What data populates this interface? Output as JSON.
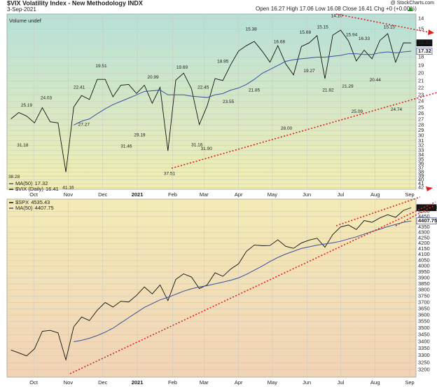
{
  "chart_data": [
    {
      "type": "line",
      "y_scale": "log",
      "inverted": true,
      "grid": true,
      "title": "$VIX Volatility Index - New Methodology INDX",
      "date": "3-Sep-2021",
      "quote": "Open 16.27 High 17.06 Low 16.08 Close 16.41 Chg +0 (+0.00%)",
      "source": "@ StockCharts.com",
      "annotation": "Volume undef",
      "x": [
        0,
        1,
        2,
        3,
        4,
        5,
        6,
        7,
        8,
        9,
        10,
        11,
        12,
        13,
        14,
        15,
        16,
        17,
        18,
        19,
        20,
        21,
        22,
        23,
        24,
        25,
        26,
        27,
        28,
        29,
        30,
        31,
        32,
        33,
        34,
        35,
        36,
        37,
        38,
        39,
        40,
        41,
        42,
        43,
        44,
        45,
        46,
        47,
        48,
        49,
        50,
        51
      ],
      "xlim": [
        -0.5,
        51.6
      ],
      "xticks": [
        {
          "value": 2.9,
          "label": "Oct"
        },
        {
          "value": 7.3,
          "label": "Nov"
        },
        {
          "value": 11.7,
          "label": "Dec"
        },
        {
          "value": 16.1,
          "label": "2021"
        },
        {
          "value": 20.6,
          "label": "Feb"
        },
        {
          "value": 24.6,
          "label": "Mar"
        },
        {
          "value": 29.0,
          "label": "Apr"
        },
        {
          "value": 33.3,
          "label": "May"
        },
        {
          "value": 37.7,
          "label": "Jun"
        },
        {
          "value": 42.0,
          "label": "Jul"
        },
        {
          "value": 46.4,
          "label": "Aug"
        },
        {
          "value": 50.8,
          "label": "Sep"
        }
      ],
      "ylim": [
        13.6,
        42.5
      ],
      "yticks": [
        14,
        15,
        18,
        19,
        20,
        21,
        22,
        23,
        24,
        25,
        26,
        27,
        28,
        29,
        30,
        31,
        32,
        33,
        34,
        35,
        36,
        37,
        38,
        39,
        40,
        41,
        42
      ],
      "series": [
        {
          "name": "$VIX (Daily)",
          "color": "#111111",
          "values": [
            26.9,
            25.8,
            26.4,
            27.6,
            25.0,
            27.4,
            27.6,
            38.0,
            24.9,
            23.1,
            23.7,
            20.8,
            20.8,
            23.3,
            21.6,
            21.5,
            22.8,
            21.6,
            24.3,
            21.9,
            33.1,
            20.9,
            19.97,
            22.1,
            27.9,
            24.7,
            20.7,
            20.95,
            18.9,
            17.3,
            16.7,
            16.25,
            17.3,
            18.6,
            16.7,
            18.8,
            20.2,
            16.8,
            16.4,
            15.65,
            20.7,
            15.6,
            15.1,
            16.2,
            18.45,
            17.2,
            18.2,
            16.15,
            15.45,
            18.6,
            16.4,
            16.41
          ]
        },
        {
          "name": "MA(50)",
          "color": "#3a4fa0",
          "values": [
            null,
            null,
            null,
            null,
            null,
            null,
            null,
            null,
            28.0,
            27.3,
            26.9,
            26.0,
            25.2,
            24.5,
            24.0,
            23.5,
            23.0,
            22.5,
            22.4,
            22.3,
            23.0,
            23.0,
            23.0,
            23.2,
            23.3,
            23.4,
            23.0,
            22.8,
            22.3,
            22.0,
            21.5,
            20.8,
            20.0,
            19.5,
            19.0,
            18.5,
            18.3,
            18.2,
            18.1,
            18.0,
            18.0,
            17.9,
            17.8,
            17.6,
            17.6,
            17.7,
            17.7,
            17.5,
            17.4,
            17.5,
            17.4,
            17.32
          ]
        }
      ],
      "point_labels": {
        "x": [
          0.4,
          2.0,
          1.5,
          4.5,
          9.3,
          7.3,
          8.7,
          11.5,
          14.7,
          16.4,
          18.1,
          20.2,
          21.8,
          24.5,
          23.7,
          24.9,
          27.0,
          27.7,
          30.6,
          31.0,
          34.2,
          35.1,
          37.5,
          39.7,
          38.0,
          41.5,
          40.4,
          43.4,
          42.9,
          45.0,
          44.1,
          46.4,
          48.2,
          49.1
        ],
        "values": [
          38.28,
          25.19,
          31.18,
          24.03,
          27.27,
          41.16,
          22.41,
          19.51,
          31.46,
          29.19,
          20.99,
          37.51,
          19.69,
          22.45,
          31.16,
          31.9,
          18.95,
          23.55,
          15.38,
          21.85,
          16.68,
          28.0,
          15.68,
          15.15,
          19.27,
          14.1,
          21.82,
          15.94,
          21.29,
          16.33,
          25.09,
          20.44,
          15.15,
          24.74
        ],
        "value_labels": [
          "38.28",
          "25.19",
          "31.18",
          "24.03",
          "27.27",
          "41.16",
          "22.41",
          "19.51",
          "31.46",
          "29.19",
          "20.99",
          "37.51",
          "19.69",
          "22.45",
          "31.16",
          "31.90",
          "18.95",
          "23.55",
          "15.38",
          "21.85",
          "16.68",
          "28.00",
          "15.68",
          "15.15",
          "19.27",
          "14.10",
          "21.82",
          "15.94",
          "21.29",
          "16.33",
          "25.09",
          "20.44",
          "15.15",
          "24.74"
        ],
        "below": [
          true,
          false,
          true,
          false,
          true,
          true,
          false,
          false,
          true,
          true,
          false,
          true,
          false,
          false,
          true,
          true,
          false,
          true,
          false,
          true,
          false,
          true,
          false,
          false,
          true,
          false,
          true,
          false,
          true,
          false,
          true,
          true,
          false,
          true
        ]
      }
    },
    {
      "type": "line",
      "y_scale": "log",
      "inverted": false,
      "grid": true,
      "x": [
        0,
        1,
        2,
        3,
        4,
        5,
        6,
        7,
        8,
        9,
        10,
        11,
        12,
        13,
        14,
        15,
        16,
        17,
        18,
        19,
        20,
        21,
        22,
        23,
        24,
        25,
        26,
        27,
        28,
        29,
        30,
        31,
        32,
        33,
        34,
        35,
        36,
        37,
        38,
        39,
        40,
        41,
        42,
        43,
        44,
        45,
        46,
        47,
        48,
        49,
        50,
        51
      ],
      "xlim": [
        -0.5,
        51.6
      ],
      "xticks": [
        {
          "value": 2.9,
          "label": "Oct"
        },
        {
          "value": 7.3,
          "label": "Nov"
        },
        {
          "value": 11.7,
          "label": "Dec"
        },
        {
          "value": 16.1,
          "label": "2021"
        },
        {
          "value": 20.6,
          "label": "Feb"
        },
        {
          "value": 24.6,
          "label": "Mar"
        },
        {
          "value": 29.0,
          "label": "Apr"
        },
        {
          "value": 33.3,
          "label": "May"
        },
        {
          "value": 37.7,
          "label": "Jun"
        },
        {
          "value": 42.0,
          "label": "Jul"
        },
        {
          "value": 46.4,
          "label": "Aug"
        },
        {
          "value": 50.8,
          "label": "Sep"
        }
      ],
      "ylim": [
        3150,
        4620
      ],
      "yticks": [
        3200,
        3250,
        3300,
        3350,
        3400,
        3450,
        3500,
        3550,
        3600,
        3650,
        3700,
        3750,
        3800,
        3850,
        3900,
        3950,
        4000,
        4050,
        4100,
        4150,
        4200,
        4250,
        4300,
        4350,
        4450,
        4500
      ],
      "series": [
        {
          "name": "$SPX",
          "color": "#111111",
          "values": [
            3340,
            3319,
            3298,
            3348,
            3477,
            3484,
            3465,
            3270,
            3510,
            3585,
            3558,
            3638,
            3699,
            3663,
            3709,
            3703,
            3756,
            3825,
            3768,
            3841,
            3714,
            3887,
            3934,
            3907,
            3811,
            3842,
            3943,
            3913,
            3975,
            4020,
            4129,
            4185,
            4180,
            4181,
            4233,
            4174,
            4156,
            4204,
            4230,
            4247,
            4166,
            4281,
            4352,
            4370,
            4327,
            4412,
            4395,
            4437,
            4468,
            4442,
            4509,
            4535.43
          ]
        },
        {
          "name": "MA(50)",
          "color": "#3a4fa0",
          "values": [
            null,
            null,
            null,
            null,
            null,
            null,
            null,
            null,
            3400,
            3410,
            3425,
            3445,
            3470,
            3500,
            3540,
            3580,
            3620,
            3660,
            3690,
            3720,
            3740,
            3765,
            3790,
            3810,
            3825,
            3835,
            3850,
            3865,
            3880,
            3900,
            3930,
            3965,
            4000,
            4040,
            4075,
            4105,
            4130,
            4155,
            4170,
            4185,
            4195,
            4205,
            4220,
            4240,
            4260,
            4285,
            4310,
            4330,
            4355,
            4375,
            4395,
            4407.75
          ]
        }
      ]
    }
  ]
}
